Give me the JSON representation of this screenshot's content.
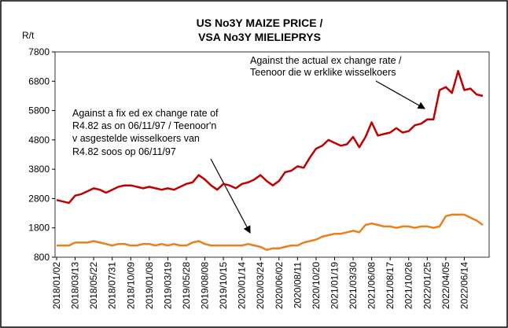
{
  "chart_data": {
    "type": "line",
    "title": [
      "US No3Y MAIZE PRICE /",
      "VSA No3Y MIELIEPRYS"
    ],
    "y_label": "R/t",
    "categories": [
      "2018/01/02",
      null,
      null,
      "2018/03/13",
      null,
      null,
      "2018/05/22",
      null,
      null,
      "2018/07/31",
      null,
      null,
      "2018/10/09",
      null,
      null,
      "2019/01/08",
      null,
      null,
      "2019/03/19",
      null,
      null,
      "2019/05/28",
      null,
      null,
      "2019/08/08",
      null,
      null,
      "2019/10/15",
      null,
      null,
      "2020/01/14",
      null,
      null,
      "2020/03/24",
      null,
      null,
      "2020/06/02",
      null,
      null,
      "2020/08/11",
      null,
      null,
      "2020/10/20",
      null,
      null,
      "2021/01/19",
      null,
      null,
      "2021/03/30",
      null,
      null,
      "2021/06/08",
      null,
      null,
      "2021/08/17",
      null,
      null,
      "2021/10/26",
      null,
      null,
      "2022/01/25",
      null,
      null,
      "2022/04/05",
      null,
      null,
      "2022/06/14",
      null,
      null,
      null
    ],
    "series": [
      {
        "color": "#c00000",
        "values": [
          2750,
          2700,
          2650,
          2900,
          2950,
          3050,
          3150,
          3100,
          3000,
          3100,
          3200,
          3250,
          3250,
          3200,
          3150,
          3200,
          3150,
          3100,
          3150,
          3100,
          3200,
          3300,
          3350,
          3600,
          3450,
          3250,
          3100,
          3300,
          3250,
          3150,
          3300,
          3350,
          3450,
          3600,
          3400,
          3250,
          3400,
          3700,
          3750,
          3900,
          3850,
          4200,
          4500,
          4600,
          4800,
          4700,
          4600,
          4650,
          4900,
          4550,
          4900,
          5400,
          4950,
          5000,
          5050,
          5200,
          5050,
          5100,
          5300,
          5350,
          5500,
          5500,
          6500,
          6600,
          6400,
          7150,
          6500,
          6550,
          6350,
          6300
        ]
      },
      {
        "color": "#e8801e",
        "values": [
          1200,
          1200,
          1200,
          1300,
          1300,
          1300,
          1350,
          1300,
          1250,
          1200,
          1250,
          1250,
          1200,
          1200,
          1250,
          1250,
          1200,
          1250,
          1200,
          1250,
          1200,
          1200,
          1300,
          1350,
          1250,
          1200,
          1200,
          1200,
          1200,
          1200,
          1200,
          1250,
          1200,
          1150,
          1050,
          1100,
          1100,
          1150,
          1200,
          1200,
          1300,
          1350,
          1400,
          1500,
          1550,
          1600,
          1600,
          1650,
          1700,
          1650,
          1900,
          1950,
          1900,
          1850,
          1850,
          1800,
          1850,
          1850,
          1800,
          1850,
          1850,
          1800,
          1850,
          2200,
          2250,
          2250,
          2250,
          2150,
          2050,
          1900
        ]
      }
    ],
    "annotations": [
      {
        "text": [
          "Against the actual ex change rate /",
          "Teenoor die w erklike wisselkoers"
        ]
      },
      {
        "text": [
          "Against a fix ed ex change rate of",
          "R4.82  as on 06/11/97 /  Teenoor'n",
          "v asgestelde  wisselkoers van",
          "R4.82 soos op 06/11/97"
        ]
      }
    ],
    "ylim": [
      800,
      7800
    ],
    "yticks": [
      800,
      1800,
      2800,
      3800,
      4800,
      5800,
      6800,
      7800
    ]
  }
}
